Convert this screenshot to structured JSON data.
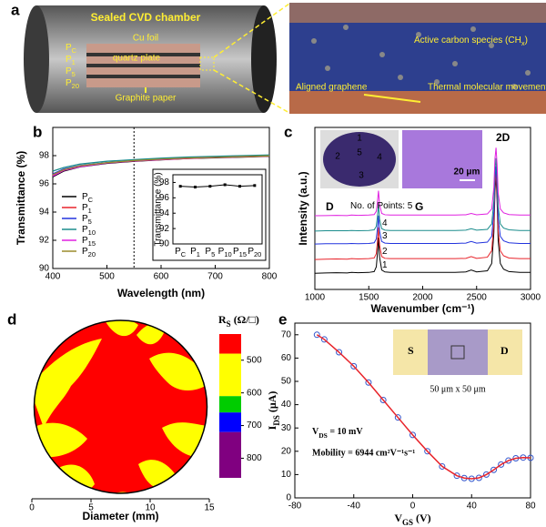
{
  "panel_a": {
    "label": "a",
    "chamber_title": "Sealed CVD chamber",
    "cu_foil": "Cu foil",
    "quartz_plate": "quartz plate",
    "positions": [
      [
        "P",
        "C"
      ],
      [
        "P",
        "1"
      ],
      [
        "P",
        "5"
      ],
      [
        "P",
        "20"
      ]
    ],
    "graphite_paper": "Graphite paper",
    "active_carbon": [
      "Active carbon species (CH",
      "x",
      ")"
    ],
    "aligned_graphene": "Aligned graphene",
    "thermal_movement": "Thermal molecular movement"
  },
  "chart_data": [
    {
      "label": "b",
      "type": "line",
      "xlabel": "Wavelength (nm)",
      "ylabel": "Transmittance (%)",
      "x": [
        400,
        420,
        450,
        500,
        550,
        600,
        650,
        700,
        750,
        800
      ],
      "series": [
        {
          "name": [
            "P",
            "C"
          ],
          "color": "#000000",
          "values": [
            96.5,
            96.9,
            97.2,
            97.45,
            97.6,
            97.7,
            97.8,
            97.85,
            97.9,
            97.95
          ]
        },
        {
          "name": [
            "P",
            "1"
          ],
          "color": "#e8232a",
          "values": [
            96.6,
            97.0,
            97.25,
            97.5,
            97.62,
            97.72,
            97.8,
            97.88,
            97.92,
            97.98
          ]
        },
        {
          "name": [
            "P",
            "5"
          ],
          "color": "#2233dd",
          "values": [
            96.7,
            97.05,
            97.3,
            97.5,
            97.65,
            97.75,
            97.85,
            97.9,
            97.95,
            98.0
          ]
        },
        {
          "name": [
            "P",
            "10"
          ],
          "color": "#1a8c8c",
          "values": [
            96.9,
            97.15,
            97.4,
            97.6,
            97.72,
            97.82,
            97.9,
            97.95,
            98.0,
            98.05
          ]
        },
        {
          "name": [
            "P",
            "15"
          ],
          "color": "#e020e0",
          "values": [
            96.55,
            96.95,
            97.22,
            97.48,
            97.62,
            97.72,
            97.82,
            97.87,
            97.92,
            97.97
          ]
        },
        {
          "name": [
            "P",
            "20"
          ],
          "color": "#9a8a2a",
          "values": [
            96.65,
            97.0,
            97.28,
            97.5,
            97.65,
            97.75,
            97.83,
            97.88,
            97.93,
            97.98
          ]
        }
      ],
      "xlim": [
        400,
        800
      ],
      "xticks": [
        400,
        500,
        600,
        700,
        800
      ],
      "ylim": [
        90,
        100
      ],
      "yticks": [
        90,
        92,
        94,
        96,
        98
      ],
      "vline": 550,
      "inset": {
        "type": "line",
        "ylabel": "Transmittance (%)",
        "categories": [
          [
            "P",
            "C"
          ],
          [
            "P",
            "1"
          ],
          [
            "P",
            "5"
          ],
          [
            "P",
            "10"
          ],
          [
            "P",
            "15"
          ],
          [
            "P",
            "20"
          ]
        ],
        "values": [
          97.5,
          97.4,
          97.5,
          97.7,
          97.5,
          97.6
        ],
        "color": "#000000",
        "ylim": [
          90,
          99
        ],
        "yticks": [
          90,
          92,
          94,
          96,
          98
        ]
      }
    },
    {
      "label": "c",
      "type": "line",
      "xlabel": "Wavenumber (cm⁻¹)",
      "ylabel": "Intensity (a.u.)",
      "x": [
        1000,
        1100,
        1200,
        1300,
        1340,
        1400,
        1500,
        1550,
        1570,
        1580,
        1590,
        1600,
        1620,
        1650,
        1700,
        1800,
        1900,
        2000,
        2100,
        2200,
        2300,
        2400,
        2450,
        2500,
        2600,
        2640,
        2660,
        2670,
        2680,
        2690,
        2700,
        2720,
        2750,
        2800,
        2900,
        3000
      ],
      "series": [
        {
          "name": "1",
          "color": "#000000",
          "values": [
            1.0,
            1.02,
            1.03,
            1.02,
            1.05,
            1.03,
            1.05,
            1.1,
            1.4,
            2.2,
            3.2,
            2.0,
            1.2,
            1.08,
            1.05,
            1.05,
            1.05,
            1.05,
            1.05,
            1.05,
            1.05,
            1.08,
            1.2,
            1.08,
            1.15,
            1.6,
            3.5,
            6.0,
            7.0,
            5.5,
            3.0,
            1.6,
            1.25,
            1.1,
            1.05,
            1.05
          ]
        },
        {
          "name": "2",
          "color": "#e8232a",
          "values": [
            1.85,
            1.87,
            1.88,
            1.87,
            1.9,
            1.88,
            1.9,
            1.94,
            2.21,
            2.93,
            3.83,
            2.75,
            2.03,
            1.92,
            1.9,
            1.9,
            1.9,
            1.9,
            1.9,
            1.9,
            1.9,
            1.92,
            2.03,
            1.92,
            1.99,
            2.39,
            4.1,
            6.35,
            7.25,
            5.9,
            3.65,
            2.39,
            2.08,
            1.94,
            1.9,
            1.9
          ]
        },
        {
          "name": "3",
          "color": "#2233dd",
          "values": [
            2.8,
            2.82,
            2.82,
            2.82,
            2.84,
            2.82,
            2.84,
            2.88,
            3.12,
            3.76,
            4.56,
            3.6,
            2.96,
            2.86,
            2.84,
            2.84,
            2.84,
            2.84,
            2.84,
            2.84,
            2.84,
            2.86,
            2.96,
            2.86,
            2.92,
            3.28,
            4.8,
            6.8,
            7.6,
            6.4,
            4.4,
            3.28,
            3.0,
            2.88,
            2.84,
            2.84
          ]
        },
        {
          "name": "4",
          "color": "#1a8c8c",
          "values": [
            3.6,
            3.62,
            3.62,
            3.62,
            3.64,
            3.62,
            3.64,
            3.68,
            3.9,
            4.5,
            5.25,
            4.35,
            3.75,
            3.66,
            3.64,
            3.64,
            3.64,
            3.64,
            3.64,
            3.64,
            3.64,
            3.66,
            3.75,
            3.66,
            3.71,
            4.05,
            5.48,
            7.35,
            8.1,
            6.98,
            5.1,
            4.05,
            3.79,
            3.68,
            3.64,
            3.64
          ]
        },
        {
          "name": "No. of Points: 5",
          "color": "#e020e0",
          "values": [
            4.55,
            4.56,
            4.57,
            4.56,
            4.59,
            4.57,
            4.59,
            4.62,
            4.83,
            5.39,
            6.09,
            5.25,
            4.69,
            4.61,
            4.59,
            4.59,
            4.59,
            4.59,
            4.59,
            4.59,
            4.59,
            4.61,
            4.69,
            4.61,
            4.66,
            4.97,
            6.3,
            8.05,
            8.75,
            7.7,
            5.95,
            4.97,
            4.73,
            4.62,
            4.59,
            4.59
          ]
        }
      ],
      "xlim": [
        1000,
        3000
      ],
      "xticks": [
        1000,
        1500,
        2000,
        2500,
        3000
      ],
      "ylim": [
        0,
        10
      ],
      "peak_labels": [
        "D",
        "G",
        "2D"
      ],
      "wafer_points": [
        "1",
        "2",
        "3",
        "4",
        "5"
      ],
      "scale_bar": "20 μm"
    },
    {
      "label": "d",
      "type": "map",
      "xlabel": "Diameter (mm)",
      "xlim": [
        0,
        15
      ],
      "xticks": [
        0,
        5,
        10,
        15
      ],
      "colorbar": {
        "title": [
          "R",
          "S",
          " (Ω/□)"
        ],
        "lim": [
          420,
          860
        ],
        "bounds": [
          420,
          480,
          610,
          660,
          720,
          860
        ],
        "colors": [
          "#ff0000",
          "#ffff00",
          "#00cc00",
          "#0000ff",
          "#800080"
        ],
        "ticks": [
          500,
          600,
          700,
          800
        ]
      }
    },
    {
      "label": "e",
      "type": "scatter-line",
      "xlabel": [
        "V",
        "GS",
        " (V)"
      ],
      "ylabel": [
        "I",
        "DS",
        " (μA)"
      ],
      "x": [
        -65,
        -60,
        -50,
        -40,
        -30,
        -20,
        -10,
        0,
        10,
        20,
        30,
        35,
        40,
        45,
        50,
        55,
        60,
        65,
        70,
        75,
        80
      ],
      "values": [
        70,
        68,
        62.5,
        56.5,
        49.5,
        42,
        34.5,
        27,
        20,
        13.5,
        9.5,
        8.5,
        8.2,
        8.6,
        10,
        12,
        14.3,
        16,
        17,
        17.3,
        17.2
      ],
      "color": "#e8232a",
      "marker_color": "#3355cc",
      "xlim": [
        -80,
        80
      ],
      "xticks": [
        -80,
        -40,
        0,
        40,
        80
      ],
      "ylim": [
        0,
        75
      ],
      "yticks": [
        0,
        10,
        20,
        30,
        40,
        50,
        60,
        70
      ],
      "annotations": {
        "vds": [
          "V",
          "DS",
          " = 10 mV"
        ],
        "mobility": "Mobility = 6944 cm²V⁻¹s⁻¹"
      },
      "inset": {
        "source": "S",
        "drain": "D",
        "size": "50 μm x 50 μm"
      }
    }
  ]
}
